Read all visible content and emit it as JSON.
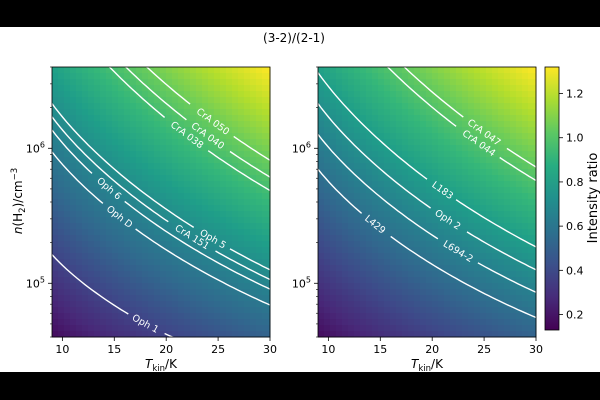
{
  "figure": {
    "title": "(3-2)/(2-1)"
  },
  "chart_data": {
    "type": "heatmap",
    "title": "(3-2)/(2-1)",
    "xlabel": "T_kin/K",
    "ylabel": "n(H2)/cm^-3",
    "xlim": [
      9,
      30
    ],
    "ylim": [
      40000,
      4000000
    ],
    "yscale": "log",
    "x_ticks": [
      10,
      15,
      20,
      25,
      30
    ],
    "y_ticks": [
      {
        "value": 100000,
        "base": "10",
        "exp": "5"
      },
      {
        "value": 1000000,
        "base": "10",
        "exp": "6"
      }
    ],
    "colormap": "viridis",
    "colorbar": {
      "label": "Intensity ratio",
      "range": [
        0.13,
        1.32
      ],
      "ticks": [
        0.2,
        0.4,
        0.6,
        0.8,
        1.0,
        1.2
      ],
      "tick_labels": [
        "0.2",
        "0.4",
        "0.6",
        "0.8",
        "1.0",
        "1.2"
      ]
    },
    "panels": [
      {
        "contours": [
          {
            "name": "CrA 050",
            "level": 1.05,
            "label_at": [
              24.5,
              1150000
            ]
          },
          {
            "name": "CrA 040",
            "level": 1.0,
            "label_at": [
              24.0,
              900000
            ]
          },
          {
            "name": "CrA 038",
            "level": 0.96,
            "label_at": [
              22.0,
              730000
            ]
          },
          {
            "name": "Oph 5",
            "level": 0.72,
            "label_at": [
              24.5,
              170000
            ]
          },
          {
            "name": "CrA 151",
            "level": 0.69,
            "label_at": [
              22.5,
              140000
            ]
          },
          {
            "name": "Oph 6",
            "level": 0.66,
            "label_at": [
              14.5,
              205000
            ]
          },
          {
            "name": "Oph D",
            "level": 0.61,
            "label_at": [
              15.5,
              115000
            ]
          },
          {
            "name": "Oph 1",
            "level": 0.37,
            "label_at": [
              18.0,
              52000
            ]
          }
        ]
      },
      {
        "contours": [
          {
            "name": "CrA 047",
            "level": 1.03,
            "label_at": [
              25.0,
              1700000
            ]
          },
          {
            "name": "CrA 044",
            "level": 0.99,
            "label_at": [
              24.5,
              1200000
            ]
          },
          {
            "name": "L183",
            "level": 0.79,
            "label_at": [
              21.0,
              380000
            ]
          },
          {
            "name": "Oph 2",
            "level": 0.72,
            "label_at": [
              21.5,
              155000
            ]
          },
          {
            "name": "L694-2",
            "level": 0.65,
            "label_at": [
              22.5,
              83000
            ]
          },
          {
            "name": "L429",
            "level": 0.57,
            "label_at": [
              14.5,
              100000
            ]
          }
        ]
      }
    ]
  }
}
